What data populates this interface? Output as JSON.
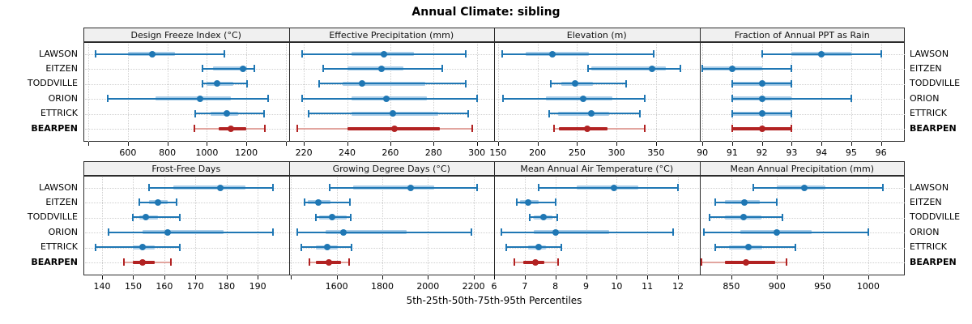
{
  "title": "Annual Climate: sibling",
  "caption": "5th-25th-50th-75th-95th Percentiles",
  "colors": {
    "blue": "#1f77b4",
    "blue_light": "#aacde8",
    "red": "#b22222",
    "red_light": "#e2a59f",
    "strip_bg": "#f0f0f0",
    "grid_line": "#cfcfcf",
    "panel_border": "#2b2b2b"
  },
  "stations": [
    "LAWSON",
    "EITZEN",
    "TODDVILLE",
    "ORION",
    "ETTRICK",
    "BEARPEN"
  ],
  "highlight_station": "BEARPEN",
  "percentiles": [
    5,
    25,
    50,
    75,
    95
  ],
  "chart_data": {
    "type": "interval-dotplot-trellis",
    "layout": "2 rows x 4 columns",
    "note": "Each series row shows 5th-25th-50th-75th-95th percentile interval with median dot",
    "panels": [
      {
        "title": "Design Freeze Index (°C)",
        "xlim": [
          375,
          1415
        ],
        "ticks": [
          {
            "value": 400,
            "label": ""
          },
          {
            "value": 600,
            "label": "600"
          },
          {
            "value": 800,
            "label": "800"
          },
          {
            "value": 1000,
            "label": "1000"
          },
          {
            "value": 1200,
            "label": "1200"
          },
          {
            "value": 1400,
            "label": ""
          }
        ],
        "values": [
          [
            435,
            600,
            725,
            840,
            1090
          ],
          [
            980,
            1030,
            1185,
            1205,
            1240
          ],
          [
            980,
            1000,
            1050,
            1135,
            1205
          ],
          [
            500,
            740,
            965,
            1120,
            1310
          ],
          [
            940,
            1020,
            1100,
            1160,
            1290
          ],
          [
            935,
            1060,
            1120,
            1200,
            1295
          ]
        ]
      },
      {
        "title": "Effective Precipitation (mm)",
        "xlim": [
          213,
          308
        ],
        "ticks": [
          {
            "value": 220,
            "label": "220"
          },
          {
            "value": 240,
            "label": "240"
          },
          {
            "value": 260,
            "label": "260"
          },
          {
            "value": 280,
            "label": "280"
          },
          {
            "value": 300,
            "label": "300"
          }
        ],
        "values": [
          [
            219,
            242,
            257,
            271,
            295
          ],
          [
            229,
            240,
            256,
            266,
            284
          ],
          [
            227,
            238,
            247,
            276,
            295
          ],
          [
            219,
            242,
            258,
            277,
            300
          ],
          [
            222,
            242,
            261,
            282,
            296
          ],
          [
            217,
            240,
            262,
            283,
            298
          ]
        ]
      },
      {
        "title": "Elevation (m)",
        "xlim": [
          145,
          405
        ],
        "ticks": [
          {
            "value": 150,
            "label": "150"
          },
          {
            "value": 200,
            "label": "200"
          },
          {
            "value": 250,
            "label": "250"
          },
          {
            "value": 300,
            "label": "300"
          },
          {
            "value": 350,
            "label": "350"
          }
        ],
        "values": [
          [
            155,
            185,
            219,
            265,
            347
          ],
          [
            264,
            268,
            345,
            362,
            381
          ],
          [
            217,
            230,
            248,
            270,
            312
          ],
          [
            156,
            211,
            258,
            295,
            336
          ],
          [
            215,
            226,
            268,
            291,
            330
          ],
          [
            221,
            227,
            263,
            289,
            336
          ]
        ]
      },
      {
        "title": "Fraction of Annual PPT as Rain",
        "xlim": [
          89.9,
          96.8
        ],
        "ticks": [
          {
            "value": 90,
            "label": "90"
          },
          {
            "value": 91,
            "label": "91"
          },
          {
            "value": 92,
            "label": "92"
          },
          {
            "value": 93,
            "label": "93"
          },
          {
            "value": 94,
            "label": "94"
          },
          {
            "value": 95,
            "label": "95"
          },
          {
            "value": 96,
            "label": "96"
          }
        ],
        "values": [
          [
            92,
            93,
            94,
            95,
            96
          ],
          [
            90,
            90,
            91,
            92,
            93
          ],
          [
            91,
            91,
            92,
            93,
            93
          ],
          [
            91,
            91,
            92,
            93,
            95
          ],
          [
            91,
            91,
            92,
            93,
            93
          ],
          [
            91,
            91,
            92,
            93,
            93
          ]
        ]
      },
      {
        "title": "Frost-Free Days",
        "xlim": [
          134,
          200
        ],
        "ticks": [
          {
            "value": 140,
            "label": "140"
          },
          {
            "value": 150,
            "label": "150"
          },
          {
            "value": 160,
            "label": "160"
          },
          {
            "value": 170,
            "label": "170"
          },
          {
            "value": 180,
            "label": "180"
          },
          {
            "value": 190,
            "label": "190"
          }
        ],
        "values": [
          [
            155,
            163,
            178,
            186,
            195
          ],
          [
            152,
            155,
            158,
            161,
            164
          ],
          [
            150,
            152,
            154,
            158,
            165
          ],
          [
            142,
            153,
            161,
            179,
            195
          ],
          [
            138,
            150,
            153,
            157,
            165
          ],
          [
            147,
            150,
            153,
            157,
            162
          ]
        ]
      },
      {
        "title": "Growing Degree Days (°C)",
        "xlim": [
          1390,
          2290
        ],
        "ticks": [
          {
            "value": 1400,
            "label": ""
          },
          {
            "value": 1600,
            "label": "1600"
          },
          {
            "value": 1800,
            "label": "1800"
          },
          {
            "value": 2000,
            "label": "2000"
          },
          {
            "value": 2200,
            "label": "2200"
          }
        ],
        "values": [
          [
            1570,
            1672,
            1924,
            2029,
            2215
          ],
          [
            1458,
            1474,
            1518,
            1574,
            1659
          ],
          [
            1509,
            1522,
            1581,
            1645,
            1660
          ],
          [
            1428,
            1550,
            1630,
            1905,
            2190
          ],
          [
            1446,
            1509,
            1559,
            1604,
            1665
          ],
          [
            1479,
            1509,
            1565,
            1620,
            1653
          ]
        ]
      },
      {
        "title": "Mean Annual Air Temperature (°C)",
        "xlim": [
          6.0,
          12.7
        ],
        "ticks": [
          {
            "value": 6,
            "label": "6"
          },
          {
            "value": 7,
            "label": "7"
          },
          {
            "value": 8,
            "label": "8"
          },
          {
            "value": 9,
            "label": "9"
          },
          {
            "value": 10,
            "label": "10"
          },
          {
            "value": 11,
            "label": "11"
          },
          {
            "value": 12,
            "label": "12"
          }
        ],
        "values": [
          [
            7.45,
            8.7,
            9.9,
            10.7,
            12.0
          ],
          [
            6.75,
            6.85,
            7.1,
            7.45,
            8.0
          ],
          [
            7.15,
            7.3,
            7.6,
            7.9,
            8.05
          ],
          [
            6.25,
            7.3,
            8.0,
            9.75,
            11.85
          ],
          [
            6.4,
            7.1,
            7.45,
            7.7,
            8.2
          ],
          [
            6.65,
            6.95,
            7.35,
            7.65,
            8.1
          ]
        ]
      },
      {
        "title": "Mean Annual Precipitation (mm)",
        "xlim": [
          815,
          1040
        ],
        "ticks": [
          {
            "value": 850,
            "label": "850"
          },
          {
            "value": 900,
            "label": "900"
          },
          {
            "value": 950,
            "label": "950"
          },
          {
            "value": 1000,
            "label": "1000"
          }
        ],
        "values": [
          [
            874,
            900,
            930,
            953,
            1016
          ],
          [
            832,
            843,
            864,
            881,
            900
          ],
          [
            826,
            843,
            863,
            883,
            906
          ],
          [
            820,
            860,
            900,
            938,
            1000
          ],
          [
            832,
            847,
            869,
            884,
            920
          ],
          [
            817,
            843,
            866,
            898,
            910
          ]
        ]
      }
    ]
  }
}
